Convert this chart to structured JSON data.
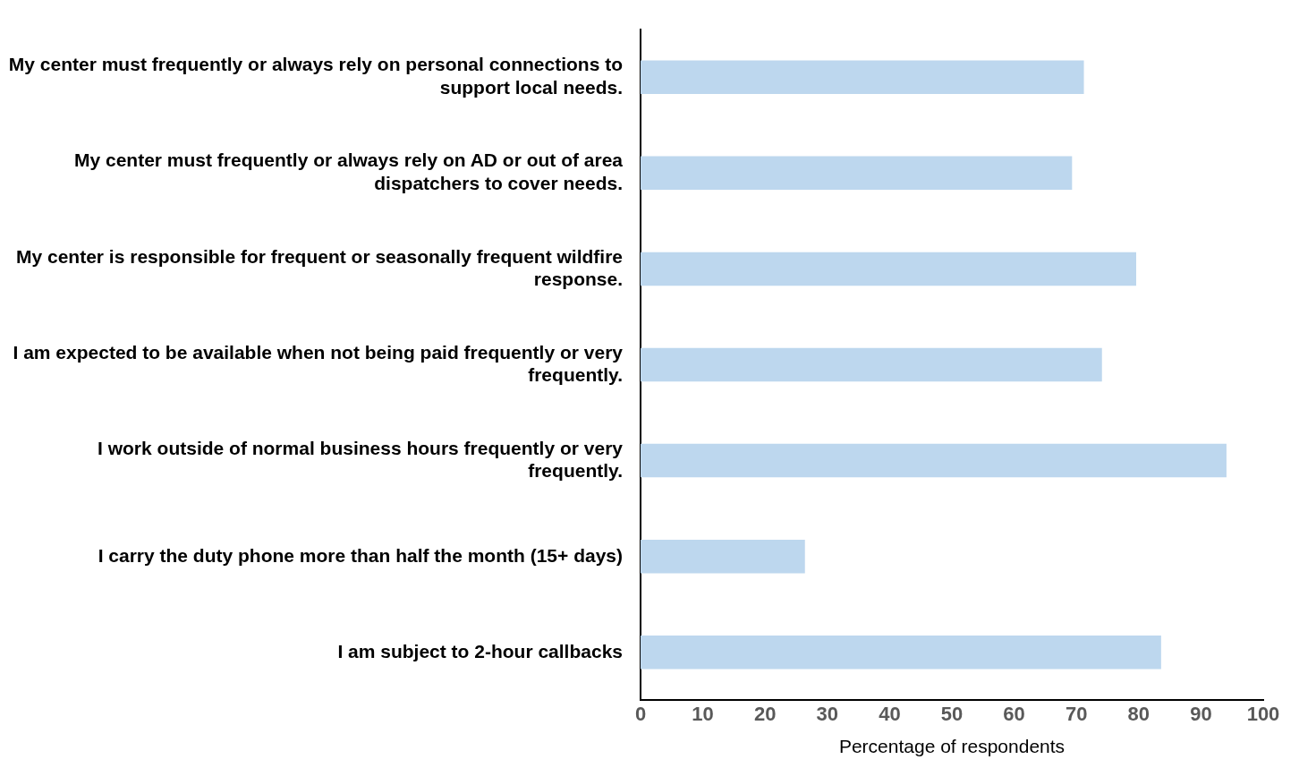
{
  "chart_data": {
    "type": "bar",
    "orientation": "horizontal",
    "xlabel": "Percentage of respondents",
    "categories": [
      "My center must frequently or always rely on personal connections to support local needs.",
      "My center must frequently or always rely on AD or out of area dispatchers to cover needs.",
      "My center is responsible for frequent or seasonally frequent wildfire response.",
      "I am expected to be available when not being paid frequently or very frequently.",
      "I work outside of normal business hours frequently or very frequently.",
      "I carry the duty phone more than half the month (15+ days)",
      "I am subject to 2-hour callbacks"
    ],
    "values": [
      71.2,
      69.3,
      79.6,
      74.1,
      94.1,
      26.4,
      83.6
    ],
    "color": "#bdd7ee",
    "xlim": [
      0,
      100
    ],
    "xticks": [
      0,
      10,
      20,
      30,
      40,
      50,
      60,
      70,
      80,
      90,
      100
    ],
    "grid": false,
    "legend": false
  }
}
